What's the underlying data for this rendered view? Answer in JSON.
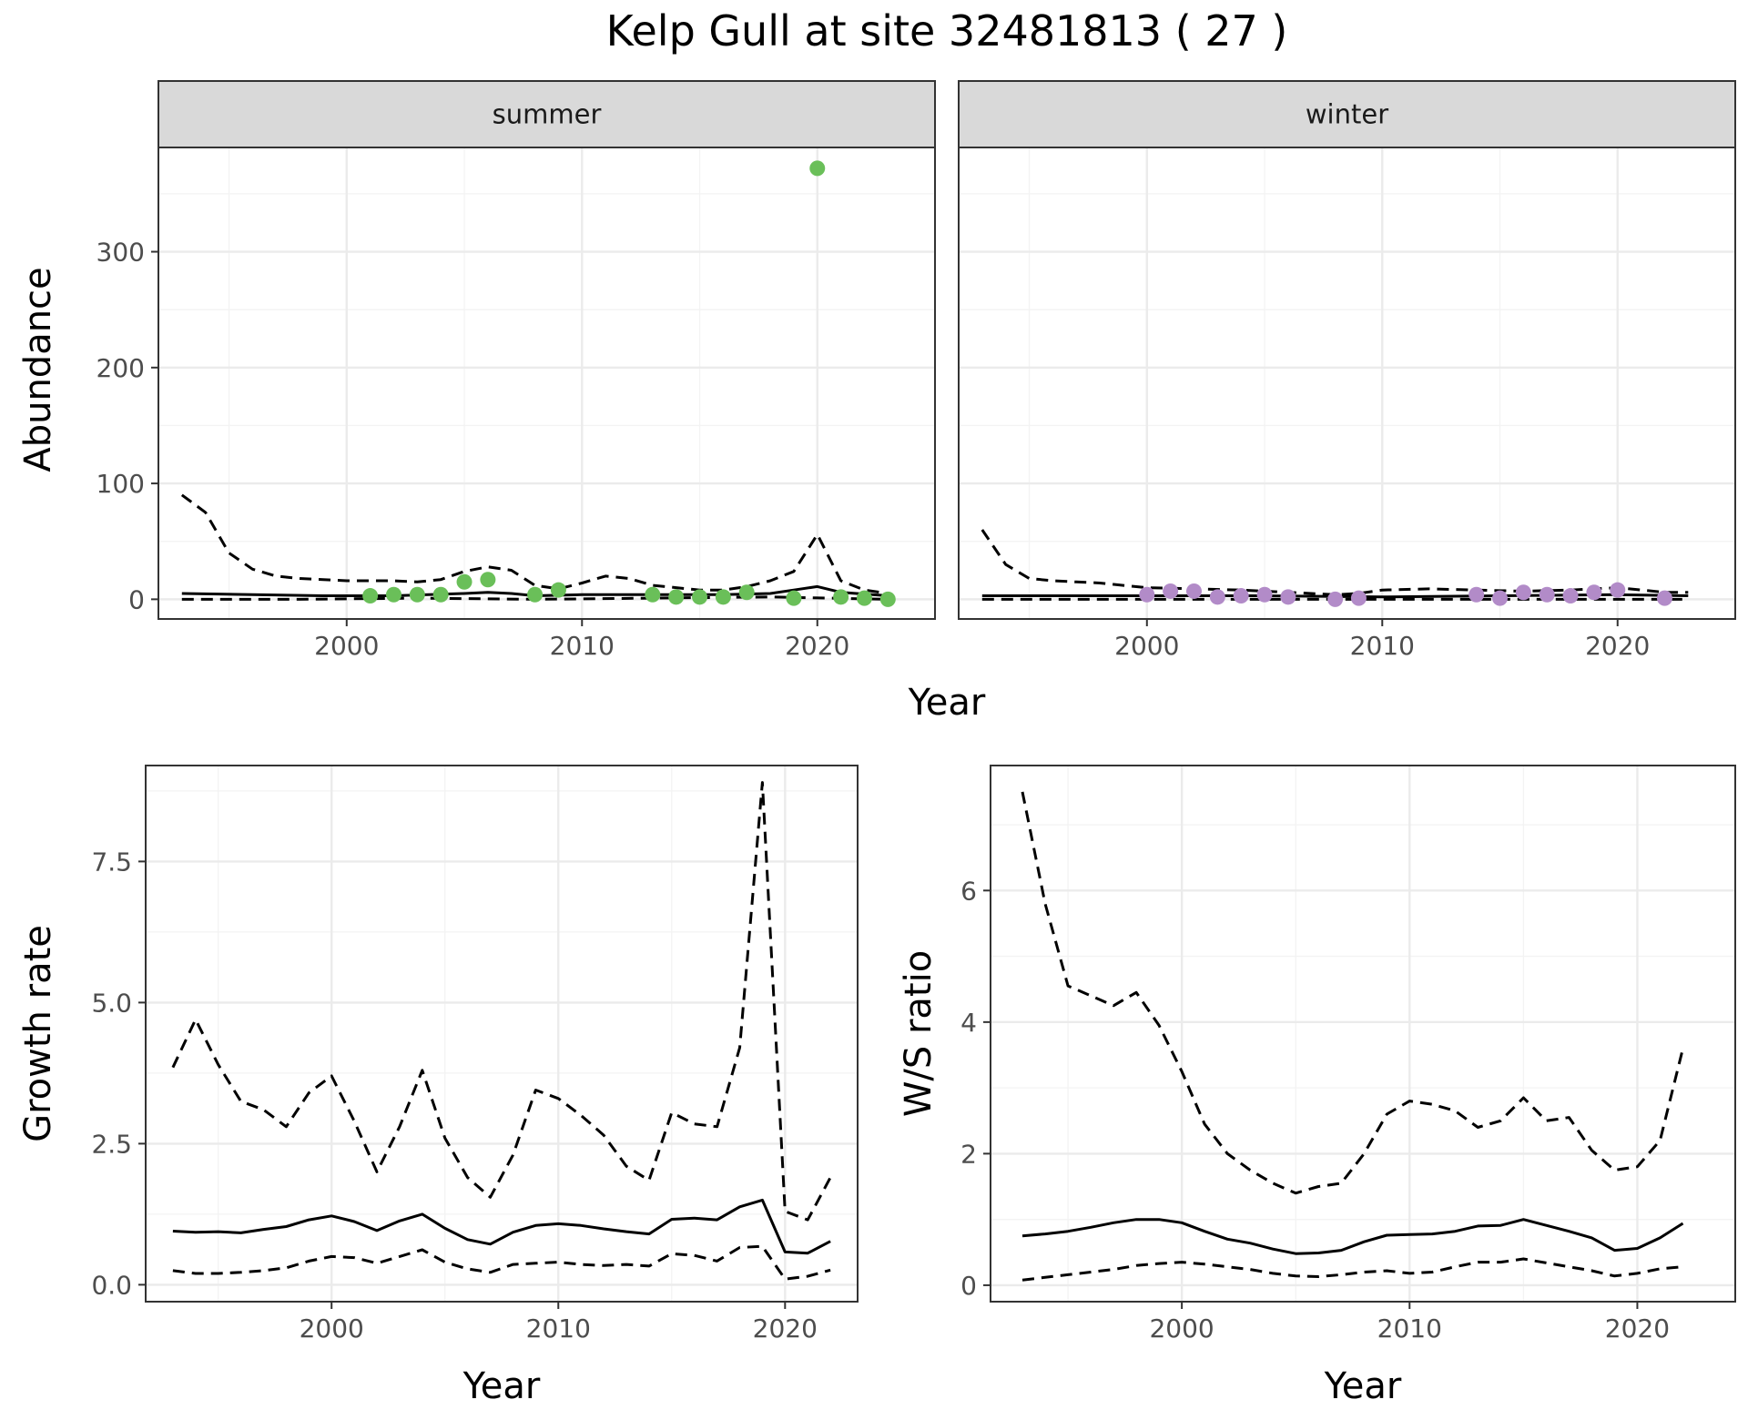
{
  "title": "Kelp Gull at site 32481813 ( 27 )",
  "colors": {
    "summer_points": "#6abf59",
    "winter_points": "#b28bc8",
    "line": "#000000",
    "strip": "#d9d9d9",
    "grid": "#ebebeb"
  },
  "chart_data": [
    {
      "type": "line",
      "title": "",
      "facet": "summer",
      "xlabel": "Year",
      "ylabel": "Abundance",
      "xlim": [
        1992,
        2025
      ],
      "ylim": [
        -17,
        390
      ],
      "xticks": [
        2000,
        2010,
        2020
      ],
      "yticks": [
        0,
        100,
        200,
        300
      ],
      "grid": true,
      "series": [
        {
          "role": "mean",
          "style": "solid",
          "x": [
            1993,
            1996,
            1999,
            2002,
            2005,
            2006,
            2007,
            2008,
            2010,
            2013,
            2016,
            2018,
            2019,
            2020,
            2021,
            2023
          ],
          "y": [
            5,
            4,
            3,
            3,
            5,
            6,
            5,
            3,
            4,
            4,
            4,
            5,
            8,
            11,
            6,
            3
          ]
        },
        {
          "role": "upper",
          "style": "dashed",
          "x": [
            1993,
            1994,
            1995,
            1996,
            1997,
            1998,
            1999,
            2000,
            2001,
            2002,
            2003,
            2004,
            2005,
            2006,
            2007,
            2008,
            2009,
            2010,
            2011,
            2012,
            2013,
            2014,
            2015,
            2016,
            2017,
            2018,
            2019,
            2020,
            2021,
            2022,
            2023
          ],
          "y": [
            90,
            75,
            40,
            26,
            20,
            18,
            17,
            16,
            16,
            16,
            15,
            17,
            24,
            28,
            25,
            12,
            9,
            14,
            20,
            18,
            12,
            10,
            8,
            8,
            11,
            16,
            24,
            56,
            16,
            8,
            5
          ]
        },
        {
          "role": "lower",
          "style": "dashed",
          "x": [
            1993,
            1998,
            2003,
            2008,
            2013,
            2018,
            2023
          ],
          "y": [
            0,
            0,
            1,
            0,
            1,
            2,
            0
          ]
        },
        {
          "role": "observed",
          "style": "points",
          "x": [
            2001,
            2002,
            2003,
            2004,
            2005,
            2006,
            2008,
            2009,
            2013,
            2014,
            2015,
            2016,
            2017,
            2019,
            2020,
            2021,
            2022,
            2023
          ],
          "y": [
            3,
            4,
            4,
            4,
            15,
            17,
            4,
            8,
            4,
            2,
            2,
            2,
            6,
            1,
            372,
            2,
            1,
            0
          ]
        }
      ]
    },
    {
      "type": "line",
      "title": "",
      "facet": "winter",
      "xlabel": "Year",
      "ylabel": "Abundance",
      "xlim": [
        1992,
        2025
      ],
      "ylim": [
        -17,
        390
      ],
      "xticks": [
        2000,
        2010,
        2020
      ],
      "yticks": [
        0,
        100,
        200,
        300
      ],
      "grid": true,
      "series": [
        {
          "role": "mean",
          "style": "solid",
          "x": [
            1993,
            2000,
            2005,
            2010,
            2015,
            2020,
            2023
          ],
          "y": [
            3,
            3,
            3,
            2,
            3,
            4,
            3
          ]
        },
        {
          "role": "upper",
          "style": "dashed",
          "x": [
            1993,
            1994,
            1995,
            1996,
            1997,
            1998,
            1999,
            2000,
            2002,
            2004,
            2006,
            2008,
            2009,
            2010,
            2012,
            2014,
            2016,
            2018,
            2020,
            2022,
            2023
          ],
          "y": [
            60,
            30,
            18,
            16,
            15,
            14,
            12,
            10,
            9,
            8,
            6,
            4,
            5,
            8,
            9,
            8,
            7,
            8,
            10,
            6,
            6
          ]
        },
        {
          "role": "lower",
          "style": "dashed",
          "x": [
            1993,
            2000,
            2008,
            2015,
            2023
          ],
          "y": [
            0,
            0,
            0,
            0,
            0
          ]
        },
        {
          "role": "observed",
          "style": "points",
          "x": [
            2000,
            2001,
            2002,
            2003,
            2004,
            2005,
            2006,
            2008,
            2009,
            2014,
            2015,
            2016,
            2017,
            2018,
            2019,
            2020,
            2022
          ],
          "y": [
            4,
            7,
            7,
            2,
            3,
            4,
            2,
            0,
            1,
            4,
            1,
            6,
            4,
            3,
            6,
            8,
            1
          ]
        }
      ]
    },
    {
      "type": "line",
      "title": "",
      "xlabel": "Year",
      "ylabel": "Growth rate",
      "xlim": [
        1991.8,
        2023.2
      ],
      "ylim": [
        -0.3,
        9.2
      ],
      "xticks": [
        2000,
        2010,
        2020
      ],
      "yticks": [
        0.0,
        2.5,
        5.0,
        7.5
      ],
      "ytick_labels": [
        "0.0",
        "2.5",
        "5.0",
        "7.5"
      ],
      "grid": true,
      "series": [
        {
          "role": "mean",
          "style": "solid",
          "x": [
            1993,
            1994,
            1995,
            1996,
            1997,
            1998,
            1999,
            2000,
            2001,
            2002,
            2003,
            2004,
            2005,
            2006,
            2007,
            2008,
            2009,
            2010,
            2011,
            2012,
            2013,
            2014,
            2015,
            2016,
            2017,
            2018,
            2019,
            2020,
            2021,
            2022
          ],
          "y": [
            0.95,
            0.93,
            0.94,
            0.92,
            0.98,
            1.03,
            1.15,
            1.22,
            1.12,
            0.96,
            1.13,
            1.25,
            1.0,
            0.8,
            0.72,
            0.93,
            1.05,
            1.08,
            1.05,
            0.99,
            0.94,
            0.9,
            1.16,
            1.18,
            1.15,
            1.38,
            1.5,
            0.58,
            0.56,
            0.77
          ]
        },
        {
          "role": "upper",
          "style": "dashed",
          "x": [
            1993,
            1994,
            1995,
            1996,
            1997,
            1998,
            1999,
            2000,
            2001,
            2002,
            2003,
            2004,
            2005,
            2006,
            2007,
            2008,
            2009,
            2010,
            2011,
            2012,
            2013,
            2014,
            2015,
            2016,
            2017,
            2018,
            2019,
            2020,
            2021,
            2022
          ],
          "y": [
            3.85,
            4.7,
            3.9,
            3.25,
            3.1,
            2.8,
            3.4,
            3.7,
            2.9,
            2.0,
            2.8,
            3.8,
            2.6,
            1.9,
            1.55,
            2.3,
            3.45,
            3.3,
            3.0,
            2.65,
            2.1,
            1.85,
            3.05,
            2.85,
            2.8,
            4.2,
            8.9,
            1.3,
            1.15,
            1.9
          ]
        },
        {
          "role": "lower",
          "style": "dashed",
          "x": [
            1993,
            1994,
            1995,
            1996,
            1997,
            1998,
            1999,
            2000,
            2001,
            2002,
            2003,
            2004,
            2005,
            2006,
            2007,
            2008,
            2009,
            2010,
            2011,
            2012,
            2013,
            2014,
            2015,
            2016,
            2017,
            2018,
            2019,
            2020,
            2021,
            2022
          ],
          "y": [
            0.25,
            0.2,
            0.2,
            0.22,
            0.25,
            0.3,
            0.42,
            0.5,
            0.48,
            0.38,
            0.5,
            0.62,
            0.4,
            0.28,
            0.22,
            0.36,
            0.38,
            0.4,
            0.36,
            0.34,
            0.36,
            0.33,
            0.55,
            0.52,
            0.42,
            0.66,
            0.68,
            0.1,
            0.15,
            0.26
          ]
        }
      ]
    },
    {
      "type": "line",
      "title": "",
      "xlabel": "Year",
      "ylabel": "W/S ratio",
      "xlim": [
        1991.6,
        2024.3
      ],
      "ylim": [
        -0.25,
        7.9
      ],
      "xticks": [
        2000,
        2010,
        2020
      ],
      "yticks": [
        0,
        2,
        4,
        6
      ],
      "ytick_labels": [
        "0",
        "2",
        "4",
        "6"
      ],
      "grid": true,
      "series": [
        {
          "role": "mean",
          "style": "solid",
          "x": [
            1993,
            1994,
            1995,
            1996,
            1997,
            1998,
            1999,
            2000,
            2001,
            2002,
            2003,
            2004,
            2005,
            2006,
            2007,
            2008,
            2009,
            2010,
            2011,
            2012,
            2013,
            2014,
            2015,
            2016,
            2017,
            2018,
            2019,
            2020,
            2021,
            2022
          ],
          "y": [
            0.75,
            0.78,
            0.82,
            0.88,
            0.95,
            1.0,
            1.0,
            0.95,
            0.82,
            0.7,
            0.64,
            0.55,
            0.48,
            0.49,
            0.53,
            0.66,
            0.76,
            0.77,
            0.78,
            0.82,
            0.9,
            0.91,
            1.0,
            0.91,
            0.82,
            0.72,
            0.53,
            0.56,
            0.72,
            0.94
          ]
        },
        {
          "role": "upper",
          "style": "dashed",
          "x": [
            1993,
            1994,
            1995,
            1996,
            1997,
            1998,
            1999,
            2000,
            2001,
            2002,
            2003,
            2004,
            2005,
            2006,
            2007,
            2008,
            2009,
            2010,
            2011,
            2012,
            2013,
            2014,
            2015,
            2016,
            2017,
            2018,
            2019,
            2020,
            2021,
            2022
          ],
          "y": [
            7.5,
            5.8,
            4.55,
            4.4,
            4.25,
            4.45,
            3.95,
            3.25,
            2.45,
            2.0,
            1.75,
            1.55,
            1.4,
            1.5,
            1.55,
            2.0,
            2.6,
            2.8,
            2.75,
            2.65,
            2.4,
            2.5,
            2.85,
            2.5,
            2.55,
            2.05,
            1.75,
            1.8,
            2.2,
            3.6
          ]
        },
        {
          "role": "lower",
          "style": "dashed",
          "x": [
            1993,
            1994,
            1995,
            1996,
            1997,
            1998,
            1999,
            2000,
            2001,
            2002,
            2003,
            2004,
            2005,
            2006,
            2007,
            2008,
            2009,
            2010,
            2011,
            2012,
            2013,
            2014,
            2015,
            2016,
            2017,
            2018,
            2019,
            2020,
            2021,
            2022
          ],
          "y": [
            0.08,
            0.12,
            0.16,
            0.2,
            0.24,
            0.3,
            0.33,
            0.35,
            0.32,
            0.28,
            0.24,
            0.18,
            0.14,
            0.13,
            0.16,
            0.2,
            0.22,
            0.18,
            0.2,
            0.28,
            0.35,
            0.35,
            0.4,
            0.34,
            0.28,
            0.22,
            0.14,
            0.18,
            0.25,
            0.28
          ]
        }
      ]
    }
  ]
}
